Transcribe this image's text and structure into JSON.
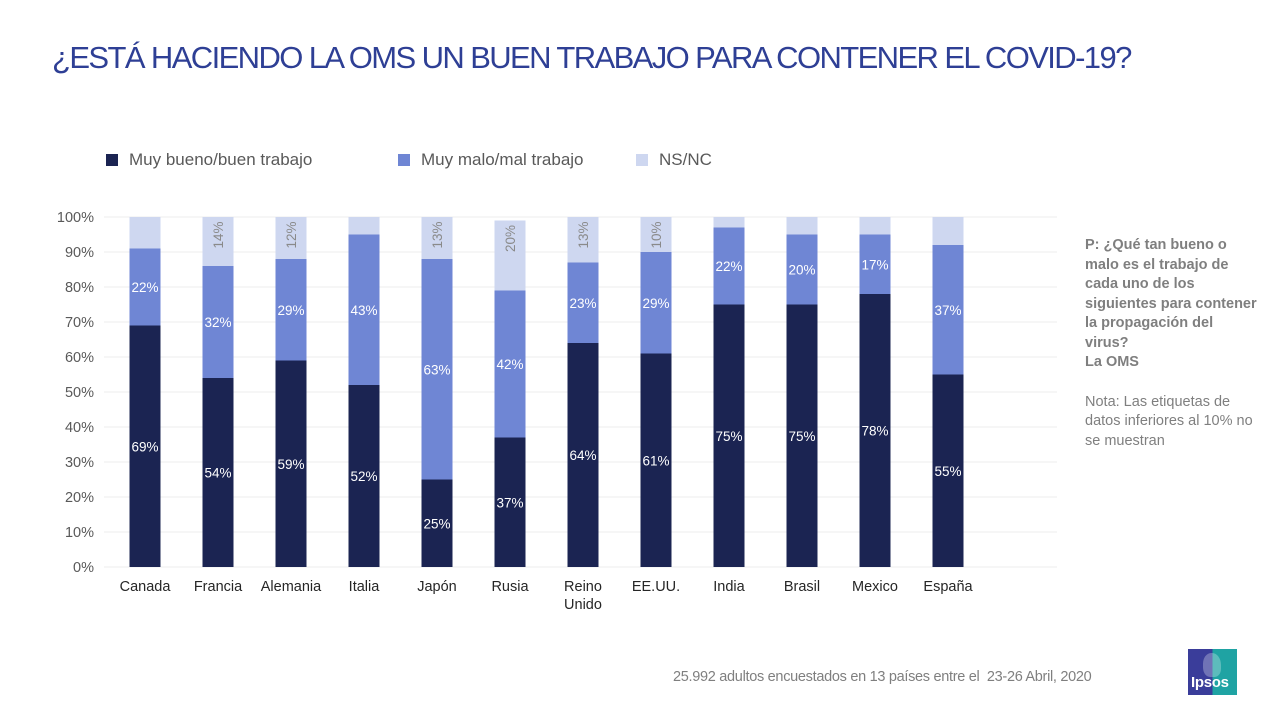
{
  "page": {
    "title": "¿ESTÁ HACIENDO LA OMS UN BUEN TRABAJO PARA CONTENER EL COVID-19?",
    "side_question": "P: ¿Qué tan bueno o malo es el trabajo de cada uno de los siguientes para contener la propagación del virus?\nLa OMS",
    "side_note": "Nota: Las etiquetas de datos inferiores al 10% no se muestran",
    "footer": "25.992 adultos encuestados en 13 países entre el  23-26 Abril, 2020",
    "logo_text": "Ipsos",
    "logo_colors": {
      "left": "#3a3d9a",
      "right": "#1fa3a3"
    }
  },
  "chart_data": {
    "type": "bar",
    "stacked": true,
    "percent": true,
    "title": "¿ESTÁ HACIENDO LA OMS UN BUEN TRABAJO PARA CONTENER EL COVID-19?",
    "xlabel": "",
    "ylabel": "",
    "ylim": [
      0,
      100
    ],
    "yticks": [
      "0%",
      "10%",
      "20%",
      "30%",
      "40%",
      "50%",
      "60%",
      "70%",
      "80%",
      "90%",
      "100%"
    ],
    "grid": true,
    "legend_position": "top",
    "label_threshold": 10,
    "categories": [
      "Canada",
      "Francia",
      "Alemania",
      "Italia",
      "Japón",
      "Rusia",
      "Reino Unido",
      "EE.UU.",
      "India",
      "Brasil",
      "Mexico",
      "España"
    ],
    "series": [
      {
        "name": "Muy bueno/buen trabajo",
        "color": "#1b2452",
        "label_color": "#ffffff",
        "values": [
          69,
          54,
          59,
          52,
          25,
          37,
          64,
          61,
          75,
          75,
          78,
          55
        ]
      },
      {
        "name": "Muy malo/mal trabajo",
        "color": "#6f86d4",
        "label_color": "#ffffff",
        "values": [
          22,
          32,
          29,
          43,
          63,
          42,
          23,
          29,
          22,
          20,
          17,
          37
        ]
      },
      {
        "name": "NS/NC",
        "color": "#ced7f0",
        "label_color": "#8a8a8a",
        "label_rotated": true,
        "values": [
          9,
          14,
          12,
          5,
          13,
          20,
          13,
          10,
          3,
          5,
          5,
          8
        ]
      }
    ]
  }
}
